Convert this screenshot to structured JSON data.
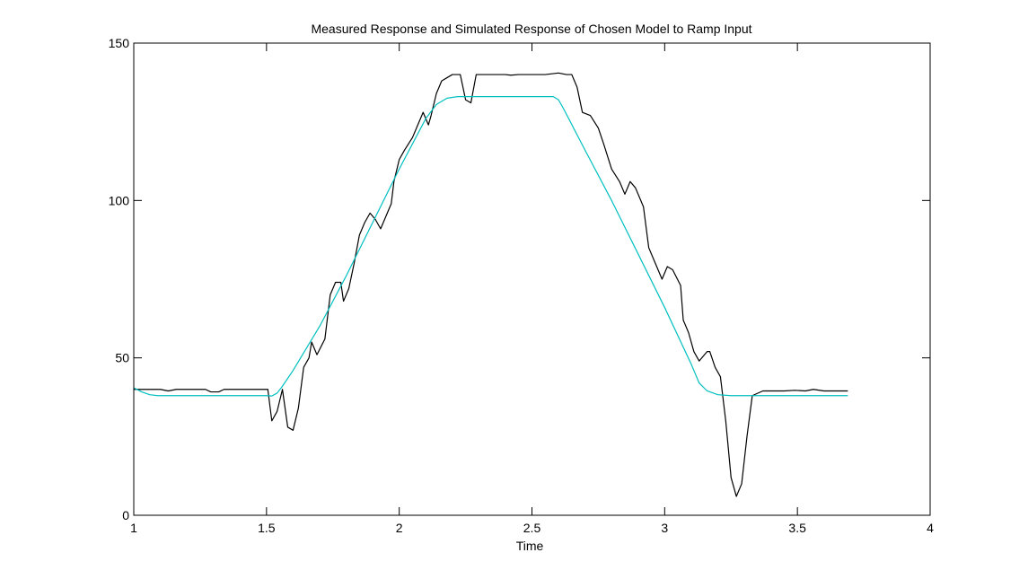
{
  "chart_data": {
    "type": "line",
    "title": "Measured Response and Simulated Response of Chosen Model to Ramp Input",
    "xlabel": "Time",
    "ylabel": "",
    "xlim": [
      1,
      4
    ],
    "ylim": [
      0,
      150
    ],
    "xticks": [
      1,
      1.5,
      2,
      2.5,
      3,
      3.5,
      4
    ],
    "xtick_labels": [
      "1",
      "1.5",
      "2",
      "2.5",
      "3",
      "3.5",
      "4"
    ],
    "yticks": [
      0,
      50,
      100,
      150
    ],
    "ytick_labels": [
      "0",
      "50",
      "100",
      "150"
    ],
    "grid": false,
    "series": [
      {
        "color": "#000000",
        "points": [
          [
            1.0,
            40
          ],
          [
            1.1,
            40
          ],
          [
            1.13,
            39.5
          ],
          [
            1.16,
            40
          ],
          [
            1.2,
            40
          ],
          [
            1.27,
            40
          ],
          [
            1.29,
            39.2
          ],
          [
            1.32,
            39.2
          ],
          [
            1.34,
            40
          ],
          [
            1.4,
            40
          ],
          [
            1.45,
            40
          ],
          [
            1.505,
            40
          ],
          [
            1.52,
            30
          ],
          [
            1.54,
            33
          ],
          [
            1.56,
            40
          ],
          [
            1.58,
            28
          ],
          [
            1.6,
            27
          ],
          [
            1.62,
            34
          ],
          [
            1.64,
            47
          ],
          [
            1.66,
            50
          ],
          [
            1.67,
            55
          ],
          [
            1.69,
            51
          ],
          [
            1.72,
            56
          ],
          [
            1.74,
            70
          ],
          [
            1.76,
            74
          ],
          [
            1.78,
            74
          ],
          [
            1.79,
            68
          ],
          [
            1.81,
            72
          ],
          [
            1.83,
            80
          ],
          [
            1.85,
            89
          ],
          [
            1.87,
            93
          ],
          [
            1.89,
            96
          ],
          [
            1.91,
            94
          ],
          [
            1.93,
            91
          ],
          [
            1.95,
            95
          ],
          [
            1.97,
            99
          ],
          [
            1.98,
            106
          ],
          [
            2.0,
            113
          ],
          [
            2.02,
            116
          ],
          [
            2.05,
            120
          ],
          [
            2.07,
            124
          ],
          [
            2.09,
            128
          ],
          [
            2.1,
            126
          ],
          [
            2.11,
            124
          ],
          [
            2.12,
            127
          ],
          [
            2.14,
            134
          ],
          [
            2.16,
            138
          ],
          [
            2.18,
            139
          ],
          [
            2.2,
            140
          ],
          [
            2.23,
            140
          ],
          [
            2.24,
            136
          ],
          [
            2.25,
            132
          ],
          [
            2.27,
            131
          ],
          [
            2.29,
            140
          ],
          [
            2.4,
            140
          ],
          [
            2.42,
            139.8
          ],
          [
            2.45,
            140
          ],
          [
            2.55,
            140
          ],
          [
            2.6,
            140.5
          ],
          [
            2.63,
            140
          ],
          [
            2.65,
            140
          ],
          [
            2.67,
            136
          ],
          [
            2.69,
            128
          ],
          [
            2.72,
            127
          ],
          [
            2.75,
            123
          ],
          [
            2.77,
            118
          ],
          [
            2.8,
            110
          ],
          [
            2.83,
            106
          ],
          [
            2.85,
            102
          ],
          [
            2.87,
            106
          ],
          [
            2.89,
            104
          ],
          [
            2.92,
            98
          ],
          [
            2.94,
            85
          ],
          [
            2.96,
            81
          ],
          [
            2.99,
            75
          ],
          [
            3.01,
            79
          ],
          [
            3.03,
            78
          ],
          [
            3.06,
            73
          ],
          [
            3.07,
            62
          ],
          [
            3.09,
            58
          ],
          [
            3.11,
            52
          ],
          [
            3.13,
            49
          ],
          [
            3.16,
            52
          ],
          [
            3.17,
            52
          ],
          [
            3.19,
            47
          ],
          [
            3.21,
            44
          ],
          [
            3.23,
            30
          ],
          [
            3.25,
            12
          ],
          [
            3.27,
            6
          ],
          [
            3.29,
            10
          ],
          [
            3.31,
            25
          ],
          [
            3.33,
            38
          ],
          [
            3.37,
            39.5
          ],
          [
            3.45,
            39.5
          ],
          [
            3.49,
            39.7
          ],
          [
            3.53,
            39.5
          ],
          [
            3.56,
            40
          ],
          [
            3.6,
            39.5
          ],
          [
            3.69,
            39.5
          ]
        ]
      },
      {
        "color": "#00BFBF",
        "points": [
          [
            1.0,
            40.5
          ],
          [
            1.03,
            39.2
          ],
          [
            1.06,
            38.3
          ],
          [
            1.09,
            38
          ],
          [
            1.5,
            38
          ],
          [
            1.52,
            37.9
          ],
          [
            1.54,
            38.8
          ],
          [
            1.56,
            41
          ],
          [
            1.6,
            46
          ],
          [
            1.7,
            60
          ],
          [
            1.8,
            76
          ],
          [
            1.9,
            93
          ],
          [
            2.0,
            110
          ],
          [
            2.1,
            126
          ],
          [
            2.14,
            130.5
          ],
          [
            2.18,
            132.5
          ],
          [
            2.22,
            133
          ],
          [
            2.58,
            133
          ],
          [
            2.6,
            132
          ],
          [
            2.62,
            129
          ],
          [
            2.7,
            116
          ],
          [
            2.8,
            100
          ],
          [
            2.9,
            83
          ],
          [
            3.0,
            66
          ],
          [
            3.1,
            48
          ],
          [
            3.13,
            42
          ],
          [
            3.16,
            39.5
          ],
          [
            3.2,
            38.3
          ],
          [
            3.25,
            38
          ],
          [
            3.69,
            38
          ]
        ]
      }
    ]
  }
}
